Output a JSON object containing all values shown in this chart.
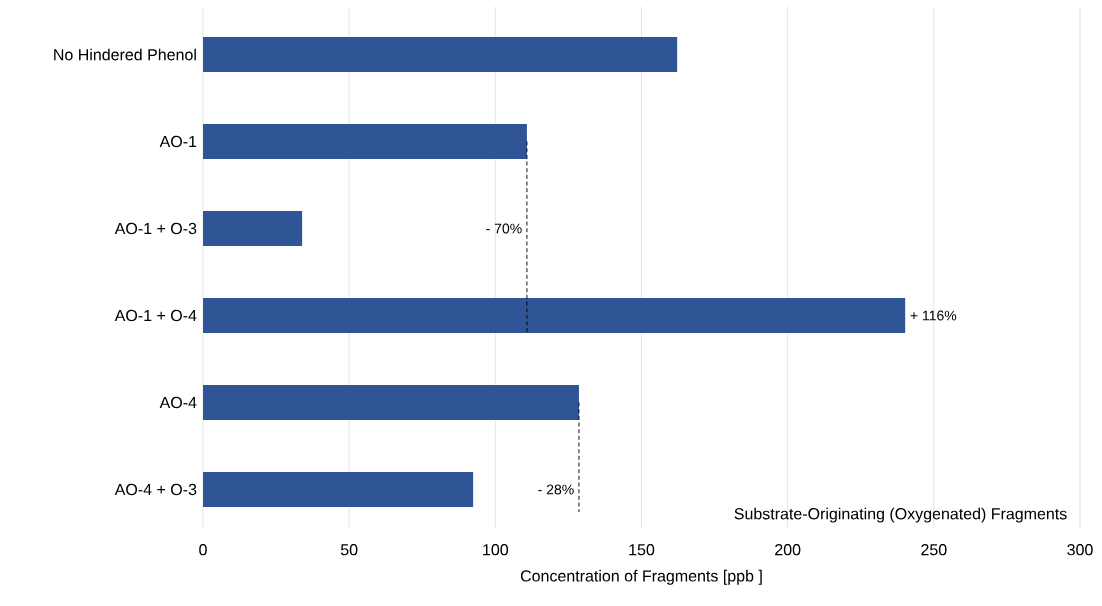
{
  "chart_data": {
    "type": "bar",
    "orientation": "horizontal",
    "categories": [
      "No Hindered Phenol",
      "AO-1",
      "AO-1 + O-3",
      "AO-1 + O-4",
      "AO-4",
      "AO-4 + O-3"
    ],
    "values": [
      162.2,
      110.8,
      33.9,
      240.2,
      128.6,
      92.4
    ],
    "color": "#2f5597",
    "xlabel": "Concentration of Fragments [ppb ]",
    "xlim": [
      0,
      300
    ],
    "xticks": [
      0,
      50,
      100,
      150,
      200,
      250,
      300
    ],
    "grid": "x",
    "ref_lines": [
      {
        "axis": "x",
        "value": 110.8,
        "line_style": "dashed",
        "color": "#000000"
      },
      {
        "axis": "x",
        "value": 128.6,
        "line_style": "dashed",
        "color": "#000000"
      }
    ],
    "annotations": [
      {
        "text": "- 70%",
        "x": 110.8,
        "y": "AO-1 + O-3"
      },
      {
        "text": "+ 116%",
        "x": 240.2,
        "y": "AO-1 + O-4"
      },
      {
        "text": "- 28%",
        "x": 128.6,
        "y": "AO-4 + O-3"
      },
      "Substrate-Originating (Oxygenated) Fragments"
    ]
  }
}
